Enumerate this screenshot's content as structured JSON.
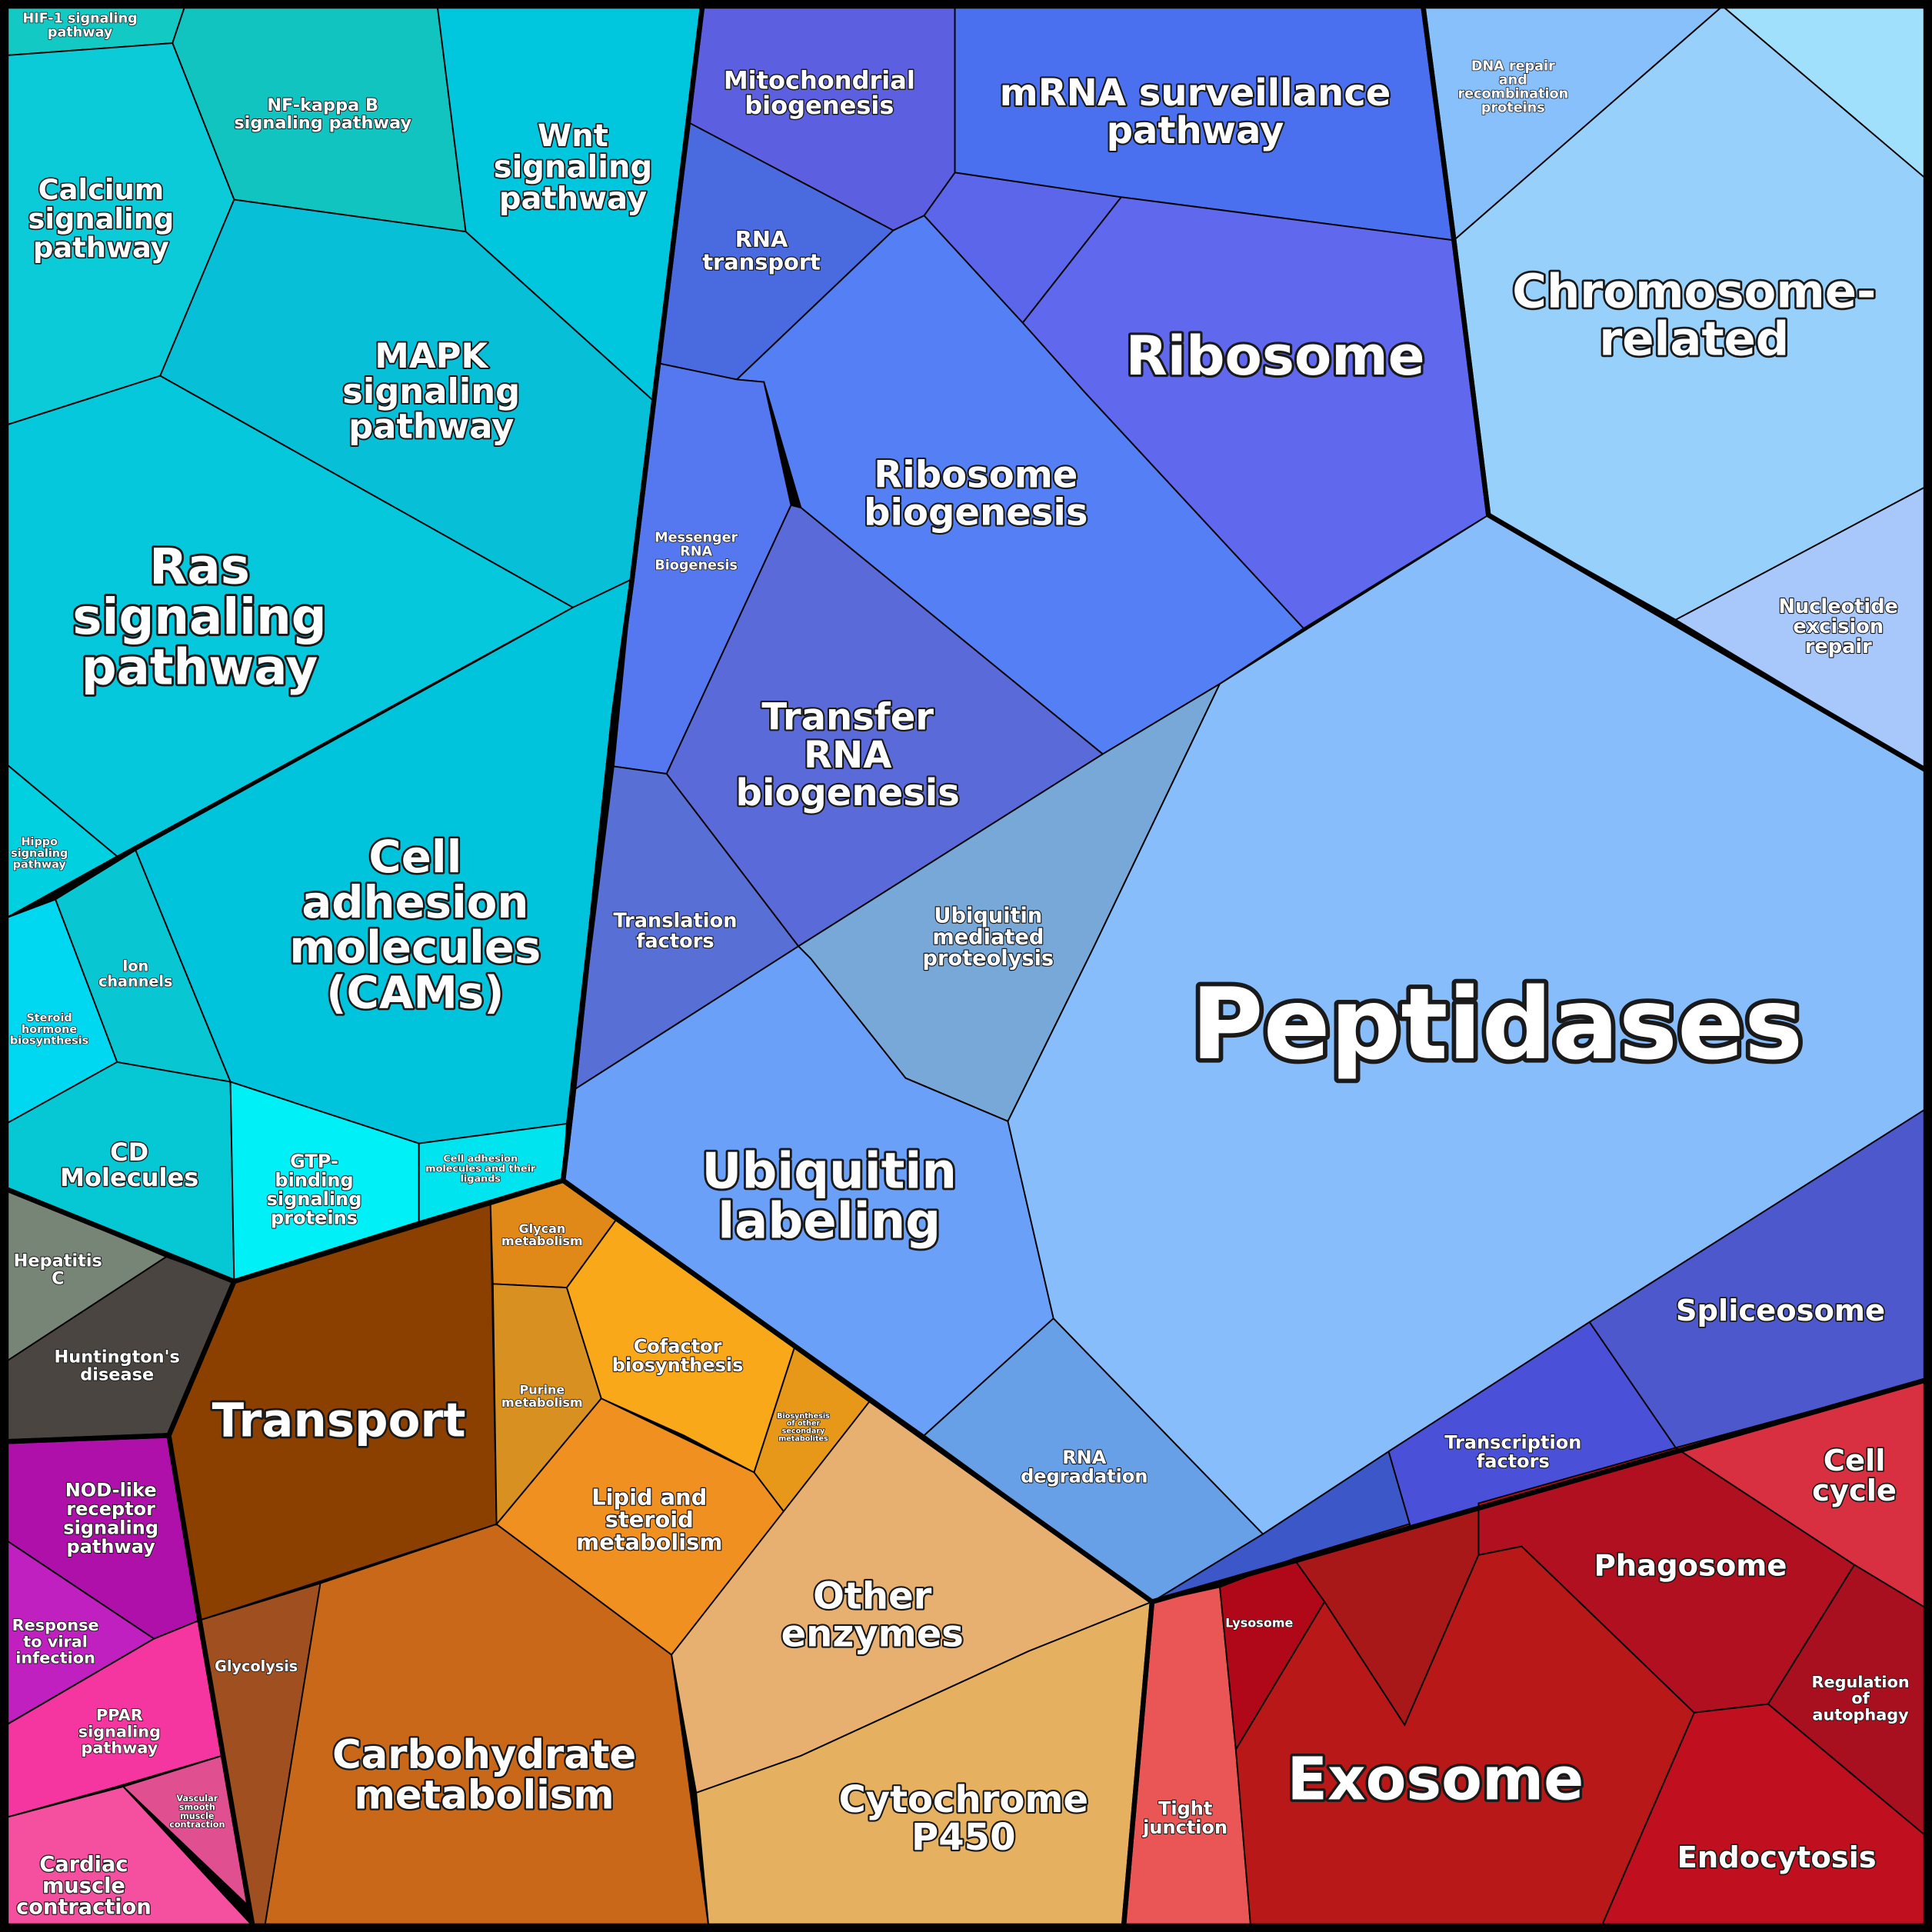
{
  "cells": [
    {
      "label": [
        "HIF-1 signaling",
        "pathway"
      ]
    },
    {
      "label": [
        "NF-kappa B",
        "signaling pathway"
      ]
    },
    {
      "label": [
        "Wnt",
        "signaling",
        "pathway"
      ]
    },
    {
      "label": [
        "Calcium",
        "signaling",
        "pathway"
      ]
    },
    {
      "label": [
        "MAPK",
        "signaling",
        "pathway"
      ]
    },
    {
      "label": [
        "Ras",
        "signaling",
        "pathway"
      ]
    },
    {
      "label": [
        "Hippo",
        "signaling",
        "pathway"
      ]
    },
    {
      "label": [
        "Cell",
        "adhesion",
        "molecules",
        "(CAMs)"
      ]
    },
    {
      "label": [
        "Ion",
        "channels"
      ]
    },
    {
      "label": [
        "Steroid",
        "hormone",
        "biosynthesis"
      ]
    },
    {
      "label": [
        "CD",
        "Molecules"
      ]
    },
    {
      "label": [
        "GTP-",
        "binding",
        "signaling",
        "proteins"
      ]
    },
    {
      "label": [
        "Cell adhesion",
        "molecules and their",
        "ligands"
      ]
    },
    {
      "label": [
        "Hepatitis",
        "C"
      ]
    },
    {
      "label": [
        "Huntington's",
        "disease"
      ]
    },
    {
      "label": [
        "NOD-like",
        "receptor",
        "signaling",
        "pathway"
      ]
    },
    {
      "label": [
        "Response",
        "to viral",
        "infection"
      ]
    },
    {
      "label": [
        "PPAR",
        "signaling",
        "pathway"
      ]
    },
    {
      "label": [
        "Vascular",
        "smooth",
        "muscle",
        "contraction"
      ]
    },
    {
      "label": [
        "Cardiac",
        "muscle",
        "contraction"
      ]
    },
    {
      "label": [
        "Transport"
      ]
    },
    {
      "label": [
        "Glycolysis"
      ]
    },
    {
      "label": [
        "Carbohydrate",
        "metabolism"
      ]
    },
    {
      "label": [
        "Glycan",
        "metabolism"
      ]
    },
    {
      "label": [
        "Purine",
        "metabolism"
      ]
    },
    {
      "label": [
        "Cofactor",
        "biosynthesis"
      ]
    },
    {
      "label": [
        "Biosynthesis",
        "of other",
        "secondary",
        "metabolites"
      ]
    },
    {
      "label": [
        "Lipid and",
        "steroid",
        "metabolism"
      ]
    },
    {
      "label": [
        "Other",
        "enzymes"
      ]
    },
    {
      "label": [
        "Cytochrome",
        "P450"
      ]
    },
    {
      "label": [
        "Mitochondrial",
        "biogenesis"
      ]
    },
    {
      "label": [
        "mRNA surveillance",
        "pathway"
      ]
    },
    {
      "label": [
        "RNA",
        "transport"
      ]
    },
    {
      "label": [
        "Ribosome"
      ]
    },
    {
      "label": [
        "Ribosome",
        "biogenesis"
      ]
    },
    {
      "label": [
        "Messenger",
        "RNA",
        "Biogenesis"
      ]
    },
    {
      "label": [
        "Transfer",
        "RNA",
        "biogenesis"
      ]
    },
    {
      "label": [
        "Translation",
        "factors"
      ]
    },
    {
      "label": [
        "Ubiquitin",
        "mediated",
        "proteolysis"
      ]
    },
    {
      "label": [
        "Ubiquitin",
        "labeling"
      ]
    },
    {
      "label": [
        "RNA",
        "degradation"
      ]
    },
    {
      "label": [
        "Peptidases"
      ]
    },
    {
      "label": [
        "Spliceosome"
      ]
    },
    {
      "label": [
        "Transcription",
        "factors"
      ]
    },
    {
      "label": [
        "DNA repair",
        "and",
        "recombination",
        "proteins"
      ]
    },
    {
      "label": [
        "Chromosome-",
        "related"
      ]
    },
    {
      "label": [
        "Nucleotide",
        "excision",
        "repair"
      ]
    },
    {
      "label": [
        "Tight",
        "junction"
      ]
    },
    {
      "label": [
        "Lysosome"
      ]
    },
    {
      "label": [
        "Exosome"
      ]
    },
    {
      "label": [
        "Phagosome"
      ]
    },
    {
      "label": [
        "Cell",
        "cycle"
      ]
    },
    {
      "label": [
        "Regulation",
        "of",
        "autophagy"
      ]
    },
    {
      "label": [
        "Endocytosis"
      ]
    }
  ]
}
